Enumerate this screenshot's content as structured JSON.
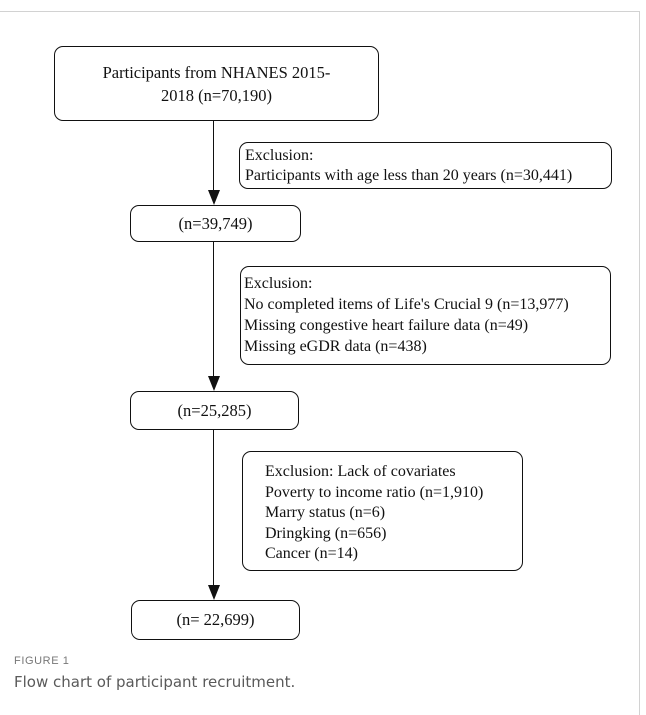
{
  "flowchart": {
    "start": {
      "lines": [
        "Participants  from NHANES 2015-",
        "2018 (n=70,190)"
      ]
    },
    "exclusion1": {
      "lines": [
        "Exclusion:",
        "Participants with age less than 20 years (n=30,441)"
      ]
    },
    "step2": {
      "lines": [
        "(n=39,749)"
      ]
    },
    "exclusion2": {
      "lines": [
        "Exclusion:",
        "No completed items of Life's Crucial 9  (n=13,977)",
        "Missing congestive heart failure data (n=49)",
        "Missing eGDR data (n=438)"
      ]
    },
    "step3": {
      "lines": [
        "(n=25,285)"
      ]
    },
    "exclusion3": {
      "lines": [
        "Exclusion: Lack of covariates",
        "Poverty to income ratio (n=1,910)",
        "Marry status (n=6)",
        "Dringking (n=656)",
        "Cancer (n=14)"
      ]
    },
    "final": {
      "lines": [
        "(n= 22,699)"
      ]
    }
  },
  "figure": {
    "label": "FIGURE 1",
    "caption": "Flow chart of participant recruitment."
  }
}
